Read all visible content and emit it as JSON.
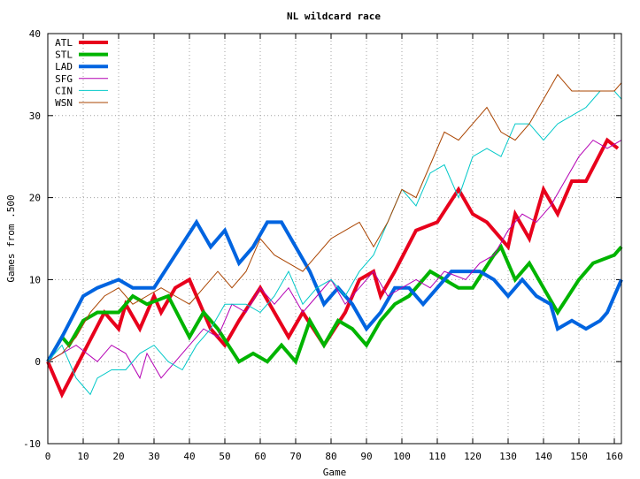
{
  "chart_data": {
    "type": "line",
    "title": "NL wildcard race",
    "xlabel": "Game",
    "ylabel": "Games from .500",
    "xlim": [
      0,
      162
    ],
    "ylim": [
      -10,
      40
    ],
    "x_ticks": [
      "0",
      "10",
      "20",
      "30",
      "40",
      "50",
      "60",
      "70",
      "80",
      "90",
      "100",
      "110",
      "120",
      "130",
      "140",
      "150",
      "160"
    ],
    "y_ticks": [
      "-10",
      "0",
      "10",
      "20",
      "30",
      "40"
    ],
    "grid": true,
    "legend_position": "top-left",
    "series": [
      {
        "name": "ATL",
        "color": "#e8001c",
        "width": 4,
        "points": [
          [
            0,
            0
          ],
          [
            4,
            -4
          ],
          [
            10,
            1
          ],
          [
            16,
            6
          ],
          [
            20,
            4
          ],
          [
            22,
            7
          ],
          [
            26,
            4
          ],
          [
            30,
            8
          ],
          [
            32,
            6
          ],
          [
            36,
            9
          ],
          [
            40,
            10
          ],
          [
            46,
            4
          ],
          [
            50,
            2
          ],
          [
            54,
            5
          ],
          [
            60,
            9
          ],
          [
            64,
            6
          ],
          [
            68,
            3
          ],
          [
            72,
            6
          ],
          [
            78,
            2
          ],
          [
            84,
            6
          ],
          [
            88,
            10
          ],
          [
            92,
            11
          ],
          [
            94,
            8
          ],
          [
            98,
            11
          ],
          [
            104,
            16
          ],
          [
            110,
            17
          ],
          [
            116,
            21
          ],
          [
            120,
            18
          ],
          [
            124,
            17
          ],
          [
            130,
            14
          ],
          [
            132,
            18
          ],
          [
            136,
            15
          ],
          [
            140,
            21
          ],
          [
            144,
            18
          ],
          [
            148,
            22
          ],
          [
            152,
            22
          ],
          [
            158,
            27
          ],
          [
            161,
            26
          ]
        ]
      },
      {
        "name": "STL",
        "color": "#00b400",
        "width": 4,
        "points": [
          [
            0,
            0
          ],
          [
            4,
            3
          ],
          [
            6,
            2
          ],
          [
            10,
            5
          ],
          [
            14,
            6
          ],
          [
            20,
            6
          ],
          [
            24,
            8
          ],
          [
            28,
            7
          ],
          [
            34,
            8
          ],
          [
            40,
            3
          ],
          [
            44,
            6
          ],
          [
            48,
            4
          ],
          [
            54,
            0
          ],
          [
            58,
            1
          ],
          [
            62,
            0
          ],
          [
            66,
            2
          ],
          [
            70,
            0
          ],
          [
            74,
            5
          ],
          [
            78,
            2
          ],
          [
            82,
            5
          ],
          [
            86,
            4
          ],
          [
            90,
            2
          ],
          [
            94,
            5
          ],
          [
            98,
            7
          ],
          [
            102,
            8
          ],
          [
            108,
            11
          ],
          [
            112,
            10
          ],
          [
            116,
            9
          ],
          [
            120,
            9
          ],
          [
            126,
            13
          ],
          [
            128,
            14
          ],
          [
            132,
            10
          ],
          [
            136,
            12
          ],
          [
            140,
            9
          ],
          [
            144,
            6
          ],
          [
            150,
            10
          ],
          [
            154,
            12
          ],
          [
            160,
            13
          ],
          [
            162,
            14
          ]
        ]
      },
      {
        "name": "LAD",
        "color": "#0064e0",
        "width": 4,
        "points": [
          [
            0,
            0
          ],
          [
            4,
            3
          ],
          [
            10,
            8
          ],
          [
            14,
            9
          ],
          [
            20,
            10
          ],
          [
            24,
            9
          ],
          [
            30,
            9
          ],
          [
            36,
            13
          ],
          [
            42,
            17
          ],
          [
            46,
            14
          ],
          [
            50,
            16
          ],
          [
            54,
            12
          ],
          [
            58,
            14
          ],
          [
            62,
            17
          ],
          [
            66,
            17
          ],
          [
            70,
            14
          ],
          [
            74,
            11
          ],
          [
            78,
            7
          ],
          [
            82,
            9
          ],
          [
            86,
            7
          ],
          [
            90,
            4
          ],
          [
            94,
            6
          ],
          [
            98,
            9
          ],
          [
            102,
            9
          ],
          [
            106,
            7
          ],
          [
            110,
            9
          ],
          [
            114,
            11
          ],
          [
            118,
            11
          ],
          [
            122,
            11
          ],
          [
            126,
            10
          ],
          [
            130,
            8
          ],
          [
            134,
            10
          ],
          [
            138,
            8
          ],
          [
            142,
            7
          ],
          [
            144,
            4
          ],
          [
            148,
            5
          ],
          [
            152,
            4
          ],
          [
            156,
            5
          ],
          [
            158,
            6
          ],
          [
            162,
            10
          ]
        ]
      },
      {
        "name": "SFG",
        "color": "#b400b4",
        "width": 1,
        "points": [
          [
            0,
            0
          ],
          [
            4,
            1
          ],
          [
            8,
            2
          ],
          [
            14,
            0
          ],
          [
            18,
            2
          ],
          [
            22,
            1
          ],
          [
            26,
            -2
          ],
          [
            28,
            1
          ],
          [
            32,
            -2
          ],
          [
            36,
            0
          ],
          [
            40,
            2
          ],
          [
            44,
            4
          ],
          [
            48,
            3
          ],
          [
            52,
            7
          ],
          [
            56,
            6
          ],
          [
            60,
            9
          ],
          [
            64,
            7
          ],
          [
            68,
            9
          ],
          [
            72,
            6
          ],
          [
            76,
            8
          ],
          [
            80,
            10
          ],
          [
            84,
            7
          ],
          [
            88,
            9
          ],
          [
            92,
            11
          ],
          [
            96,
            8
          ],
          [
            100,
            9
          ],
          [
            104,
            10
          ],
          [
            108,
            9
          ],
          [
            112,
            11
          ],
          [
            118,
            10
          ],
          [
            122,
            12
          ],
          [
            126,
            13
          ],
          [
            130,
            16
          ],
          [
            134,
            18
          ],
          [
            138,
            17
          ],
          [
            142,
            19
          ],
          [
            146,
            22
          ],
          [
            150,
            25
          ],
          [
            154,
            27
          ],
          [
            158,
            26
          ],
          [
            162,
            27
          ]
        ]
      },
      {
        "name": "CIN",
        "color": "#00c8c8",
        "width": 1,
        "points": [
          [
            0,
            0
          ],
          [
            4,
            2
          ],
          [
            6,
            0
          ],
          [
            8,
            -2
          ],
          [
            10,
            -3
          ],
          [
            12,
            -4
          ],
          [
            14,
            -2
          ],
          [
            18,
            -1
          ],
          [
            22,
            -1
          ],
          [
            26,
            1
          ],
          [
            30,
            2
          ],
          [
            34,
            0
          ],
          [
            38,
            -1
          ],
          [
            42,
            2
          ],
          [
            46,
            4
          ],
          [
            50,
            7
          ],
          [
            56,
            7
          ],
          [
            60,
            6
          ],
          [
            64,
            8
          ],
          [
            68,
            11
          ],
          [
            72,
            7
          ],
          [
            76,
            9
          ],
          [
            80,
            10
          ],
          [
            84,
            8
          ],
          [
            88,
            11
          ],
          [
            92,
            13
          ],
          [
            96,
            17
          ],
          [
            100,
            21
          ],
          [
            104,
            19
          ],
          [
            108,
            23
          ],
          [
            112,
            24
          ],
          [
            116,
            20
          ],
          [
            120,
            25
          ],
          [
            124,
            26
          ],
          [
            128,
            25
          ],
          [
            132,
            29
          ],
          [
            136,
            29
          ],
          [
            140,
            27
          ],
          [
            144,
            29
          ],
          [
            148,
            30
          ],
          [
            152,
            31
          ],
          [
            156,
            33
          ],
          [
            160,
            33
          ],
          [
            162,
            32
          ]
        ]
      },
      {
        "name": "WSN",
        "color": "#aa4400",
        "width": 1,
        "points": [
          [
            0,
            0
          ],
          [
            4,
            1
          ],
          [
            8,
            3
          ],
          [
            12,
            6
          ],
          [
            16,
            8
          ],
          [
            20,
            9
          ],
          [
            24,
            7
          ],
          [
            28,
            8
          ],
          [
            32,
            9
          ],
          [
            36,
            8
          ],
          [
            40,
            7
          ],
          [
            44,
            9
          ],
          [
            48,
            11
          ],
          [
            52,
            9
          ],
          [
            56,
            11
          ],
          [
            60,
            15
          ],
          [
            64,
            13
          ],
          [
            68,
            12
          ],
          [
            72,
            11
          ],
          [
            76,
            13
          ],
          [
            80,
            15
          ],
          [
            84,
            16
          ],
          [
            88,
            17
          ],
          [
            92,
            14
          ],
          [
            96,
            17
          ],
          [
            100,
            21
          ],
          [
            104,
            20
          ],
          [
            108,
            24
          ],
          [
            112,
            28
          ],
          [
            116,
            27
          ],
          [
            120,
            29
          ],
          [
            124,
            31
          ],
          [
            128,
            28
          ],
          [
            132,
            27
          ],
          [
            136,
            29
          ],
          [
            140,
            32
          ],
          [
            144,
            35
          ],
          [
            148,
            33
          ],
          [
            152,
            33
          ],
          [
            156,
            33
          ],
          [
            160,
            33
          ],
          [
            162,
            34
          ]
        ]
      }
    ]
  }
}
